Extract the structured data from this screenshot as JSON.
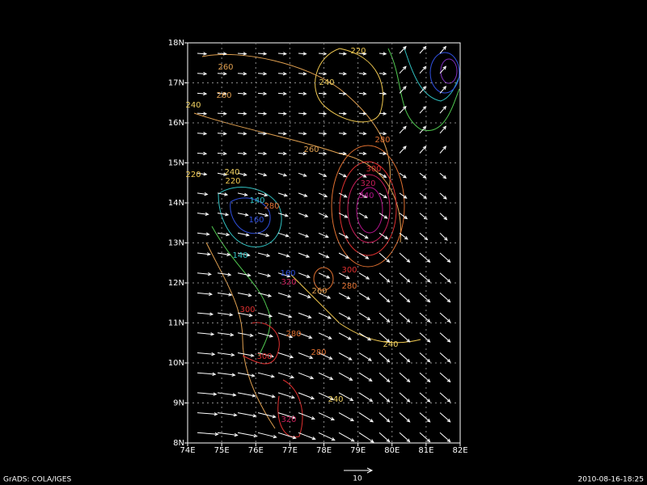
{
  "map": {
    "lat_labels": [
      "18N",
      "17N",
      "16N",
      "15N",
      "14N",
      "13N",
      "12N",
      "11N",
      "10N",
      "9N",
      "8N"
    ],
    "lon_labels": [
      "74E",
      "75E",
      "76E",
      "77E",
      "78E",
      "79E",
      "80E",
      "81E",
      "82E"
    ],
    "contour_labels": [
      "220",
      "260",
      "240",
      "260",
      "240",
      "260",
      "280",
      "300",
      "320",
      "340",
      "240",
      "220",
      "220",
      "140",
      "280",
      "160",
      "140",
      "160",
      "320",
      "300",
      "260",
      "280",
      "300",
      "280",
      "280",
      "240",
      "300",
      "240",
      "320"
    ],
    "vector_scale_label": "10",
    "footer_left": "GrADS: COLA/IGES",
    "footer_right": "2010-08-16-18:25"
  }
}
